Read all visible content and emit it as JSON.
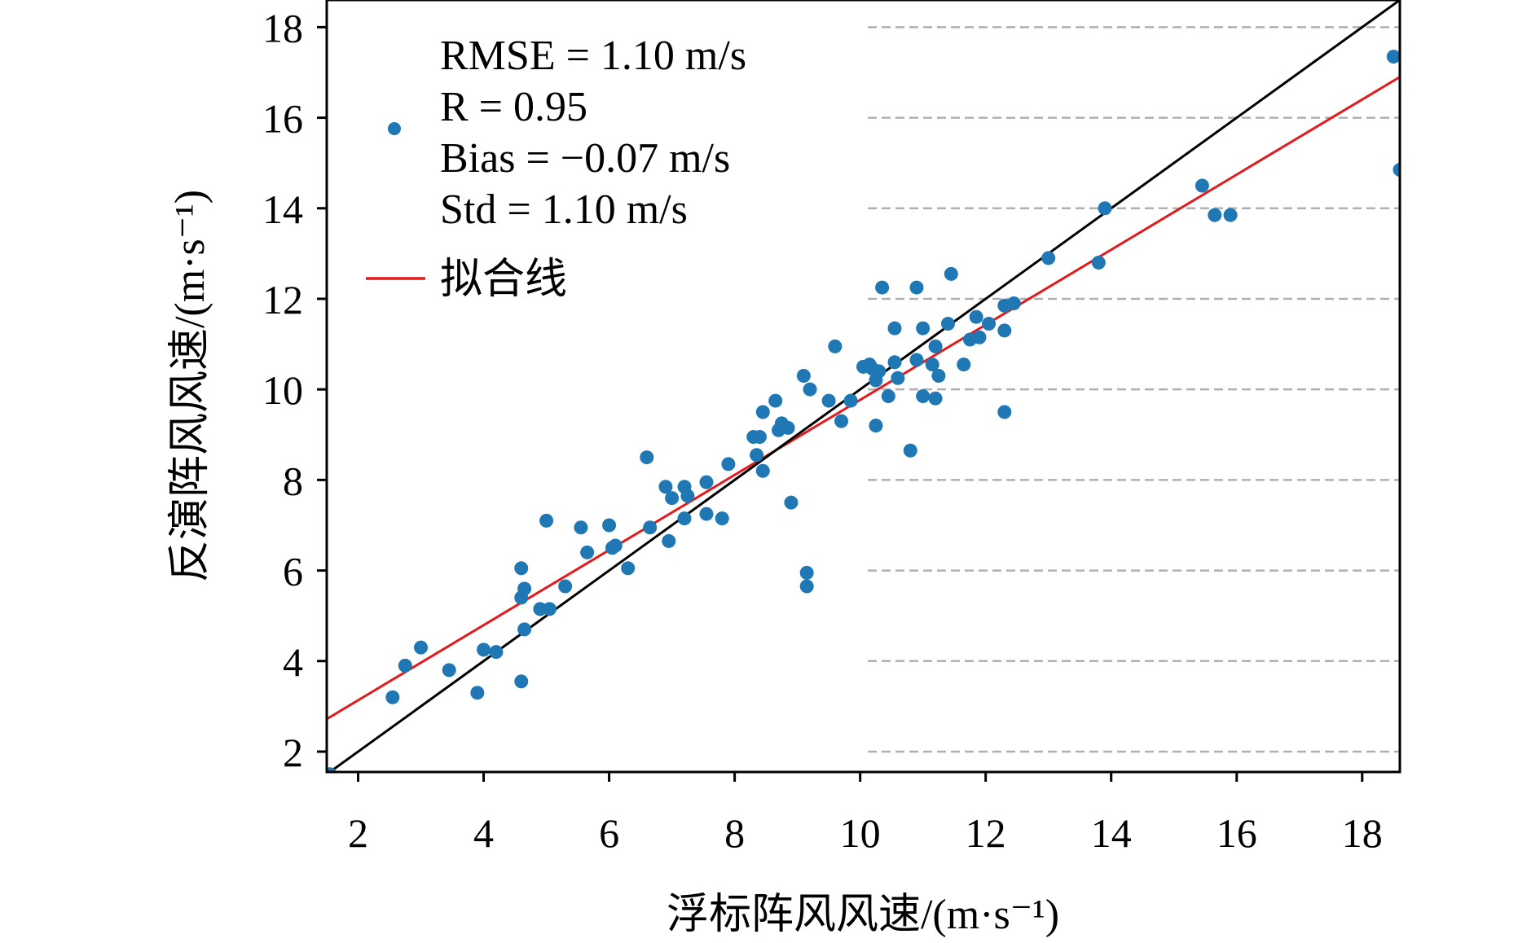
{
  "chart_data": {
    "type": "scatter",
    "xlabel": "浮标阵风风速/(m·s⁻¹)",
    "ylabel": "反演阵风风速/(m·s⁻¹)",
    "xlim": [
      1.5,
      18.6
    ],
    "ylim": [
      1.55,
      18.6
    ],
    "x_ticks": [
      2,
      4,
      6,
      8,
      10,
      12,
      14,
      16,
      18
    ],
    "y_ticks": [
      2,
      4,
      6,
      8,
      10,
      12,
      14,
      16,
      18
    ],
    "grid": "horizontal dashed",
    "stats": [
      "RMSE = 1.10 m/s",
      "R = 0.95",
      "Bias = −0.07 m/s",
      "Std = 1.10 m/s"
    ],
    "legend": [
      {
        "label": "",
        "kind": "marker",
        "color": "#1f77b4"
      },
      {
        "label": "拟合线",
        "kind": "line",
        "color": "#e31a1c"
      }
    ],
    "series": [
      {
        "kind": "scatter",
        "color": "#1f77b4",
        "points": [
          [
            1.55,
            1.5
          ],
          [
            2.55,
            3.2
          ],
          [
            2.75,
            3.9
          ],
          [
            3.0,
            4.3
          ],
          [
            3.45,
            3.8
          ],
          [
            3.9,
            3.3
          ],
          [
            4.0,
            4.25
          ],
          [
            4.2,
            4.2
          ],
          [
            4.6,
            3.55
          ],
          [
            4.6,
            6.05
          ],
          [
            4.6,
            5.4
          ],
          [
            4.65,
            5.6
          ],
          [
            4.65,
            4.7
          ],
          [
            4.9,
            5.15
          ],
          [
            5.0,
            7.1
          ],
          [
            5.05,
            5.15
          ],
          [
            5.3,
            5.65
          ],
          [
            5.55,
            6.95
          ],
          [
            5.65,
            6.4
          ],
          [
            6.0,
            7.0
          ],
          [
            6.05,
            6.5
          ],
          [
            6.1,
            6.55
          ],
          [
            6.3,
            6.05
          ],
          [
            6.6,
            8.5
          ],
          [
            6.65,
            6.95
          ],
          [
            6.9,
            7.85
          ],
          [
            6.95,
            6.65
          ],
          [
            7.0,
            7.6
          ],
          [
            7.2,
            7.85
          ],
          [
            7.2,
            7.15
          ],
          [
            7.25,
            7.65
          ],
          [
            7.55,
            7.95
          ],
          [
            7.55,
            7.25
          ],
          [
            7.8,
            7.15
          ],
          [
            7.9,
            8.35
          ],
          [
            8.3,
            8.95
          ],
          [
            8.35,
            8.55
          ],
          [
            8.4,
            8.95
          ],
          [
            8.45,
            8.2
          ],
          [
            8.45,
            9.5
          ],
          [
            8.65,
            9.75
          ],
          [
            8.7,
            9.1
          ],
          [
            8.75,
            9.25
          ],
          [
            8.85,
            9.15
          ],
          [
            8.9,
            7.5
          ],
          [
            9.1,
            10.3
          ],
          [
            9.15,
            5.95
          ],
          [
            9.15,
            5.65
          ],
          [
            9.2,
            10.0
          ],
          [
            9.5,
            9.75
          ],
          [
            9.6,
            10.95
          ],
          [
            9.7,
            9.3
          ],
          [
            9.85,
            9.75
          ],
          [
            10.05,
            10.5
          ],
          [
            10.15,
            10.55
          ],
          [
            10.2,
            10.45
          ],
          [
            10.25,
            10.2
          ],
          [
            10.25,
            9.2
          ],
          [
            10.3,
            10.4
          ],
          [
            10.35,
            12.25
          ],
          [
            10.45,
            9.85
          ],
          [
            10.55,
            11.35
          ],
          [
            10.55,
            10.6
          ],
          [
            10.6,
            10.25
          ],
          [
            10.8,
            8.65
          ],
          [
            10.9,
            10.65
          ],
          [
            10.9,
            12.25
          ],
          [
            11.0,
            11.35
          ],
          [
            11.0,
            9.85
          ],
          [
            11.15,
            10.55
          ],
          [
            11.2,
            10.95
          ],
          [
            11.2,
            9.8
          ],
          [
            11.25,
            10.3
          ],
          [
            11.4,
            11.45
          ],
          [
            11.45,
            12.55
          ],
          [
            11.65,
            10.55
          ],
          [
            11.75,
            11.1
          ],
          [
            11.85,
            11.6
          ],
          [
            11.9,
            11.15
          ],
          [
            12.05,
            11.45
          ],
          [
            12.3,
            11.85
          ],
          [
            12.3,
            11.3
          ],
          [
            12.3,
            9.5
          ],
          [
            12.45,
            11.9
          ],
          [
            13.0,
            12.9
          ],
          [
            13.8,
            12.8
          ],
          [
            13.9,
            14.0
          ],
          [
            15.45,
            14.5
          ],
          [
            15.65,
            13.85
          ],
          [
            15.9,
            13.85
          ],
          [
            18.5,
            17.35
          ],
          [
            18.6,
            14.85
          ]
        ]
      },
      {
        "kind": "line",
        "name": "拟合线",
        "color": "#e31a1c",
        "points": [
          [
            1.5,
            2.72
          ],
          [
            18.6,
            16.9
          ]
        ]
      },
      {
        "kind": "line",
        "color": "#000000",
        "points": [
          [
            1.5,
            1.5
          ],
          [
            18.6,
            18.6
          ]
        ]
      }
    ]
  }
}
